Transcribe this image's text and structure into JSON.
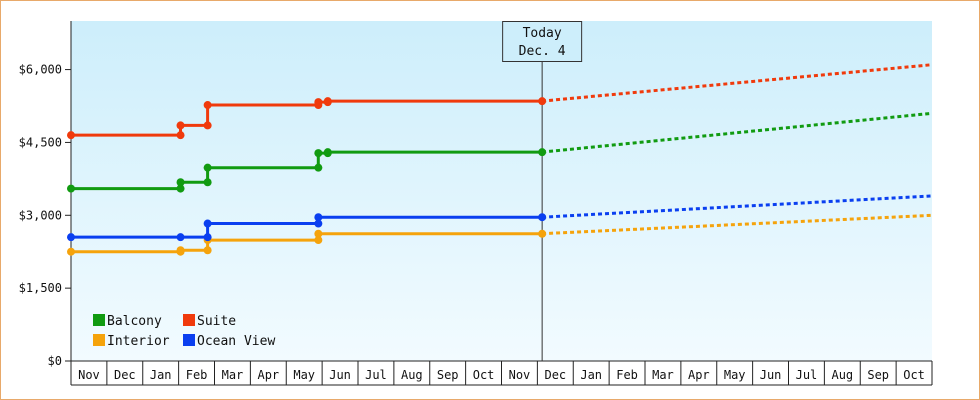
{
  "chart_data": {
    "type": "line",
    "title": "",
    "xlabel": "",
    "ylabel": "",
    "ylim": [
      0,
      7000
    ],
    "y_ticks": [
      0,
      1500,
      3000,
      4500,
      6000
    ],
    "y_tick_labels": [
      "$0",
      "$1,500",
      "$3,000",
      "$4,500",
      "$6,000"
    ],
    "x_range": [
      "2019-10-31",
      "2021-10-31"
    ],
    "x_tick_labels": [
      "Nov",
      "Dec",
      "Jan",
      "Feb",
      "Mar",
      "Apr",
      "May",
      "Jun",
      "Jul",
      "Aug",
      "Sep",
      "Oct",
      "Nov",
      "Dec",
      "Jan",
      "Feb",
      "Mar",
      "Apr",
      "May",
      "Jun",
      "Jul",
      "Aug",
      "Sep",
      "Oct"
    ],
    "grid": false,
    "legend_position": "bottom-left",
    "today_marker": {
      "date": "2020-12-04",
      "line1": "Today",
      "line2": "Dec. 4"
    },
    "series": [
      {
        "name": "Balcony",
        "color": "#119b11",
        "points": [
          [
            "2019-10-31",
            3550
          ],
          [
            "2020-02-01",
            3550
          ],
          [
            "2020-02-01",
            3680
          ],
          [
            "2020-02-24",
            3680
          ],
          [
            "2020-02-24",
            3980
          ],
          [
            "2020-05-28",
            3980
          ],
          [
            "2020-05-28",
            4280
          ],
          [
            "2020-06-05",
            4280
          ],
          [
            "2020-06-05",
            4300
          ],
          [
            "2020-12-04",
            4300
          ]
        ],
        "projection": [
          [
            "2020-12-04",
            4300
          ],
          [
            "2021-10-31",
            5100
          ]
        ]
      },
      {
        "name": "Suite",
        "color": "#f03a0c",
        "points": [
          [
            "2019-10-31",
            4650
          ],
          [
            "2020-02-01",
            4650
          ],
          [
            "2020-02-01",
            4850
          ],
          [
            "2020-02-24",
            4850
          ],
          [
            "2020-02-24",
            5270
          ],
          [
            "2020-05-28",
            5270
          ],
          [
            "2020-05-28",
            5330
          ],
          [
            "2020-06-05",
            5330
          ],
          [
            "2020-06-05",
            5350
          ],
          [
            "2020-12-04",
            5350
          ]
        ],
        "projection": [
          [
            "2020-12-04",
            5350
          ],
          [
            "2021-10-31",
            6100
          ]
        ]
      },
      {
        "name": "Interior",
        "color": "#f5a30c",
        "points": [
          [
            "2019-10-31",
            2250
          ],
          [
            "2020-02-01",
            2250
          ],
          [
            "2020-02-01",
            2280
          ],
          [
            "2020-02-24",
            2280
          ],
          [
            "2020-02-24",
            2490
          ],
          [
            "2020-05-28",
            2490
          ],
          [
            "2020-05-28",
            2620
          ],
          [
            "2020-12-04",
            2620
          ]
        ],
        "projection": [
          [
            "2020-12-04",
            2620
          ],
          [
            "2021-10-31",
            3000
          ]
        ]
      },
      {
        "name": "Ocean View",
        "color": "#0a3ff0",
        "points": [
          [
            "2019-10-31",
            2550
          ],
          [
            "2020-02-01",
            2550
          ],
          [
            "2020-02-24",
            2550
          ],
          [
            "2020-02-24",
            2830
          ],
          [
            "2020-05-28",
            2830
          ],
          [
            "2020-05-28",
            2960
          ],
          [
            "2020-12-04",
            2960
          ]
        ],
        "projection": [
          [
            "2020-12-04",
            2960
          ],
          [
            "2021-10-31",
            3400
          ]
        ]
      }
    ]
  }
}
